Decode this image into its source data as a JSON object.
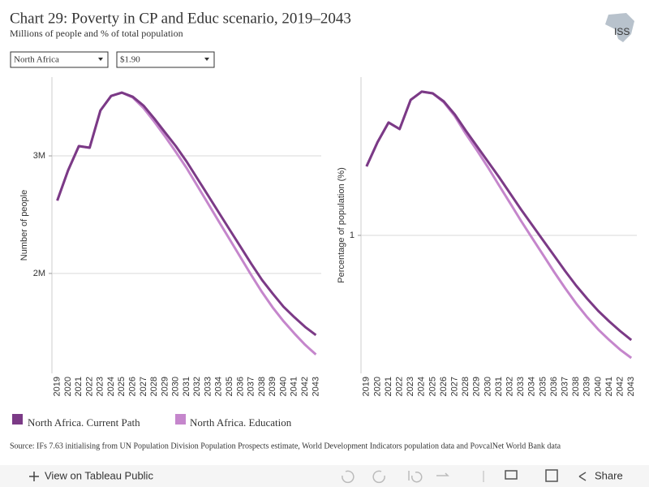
{
  "title": "Chart 29: Poverty in CP and Educ scenario, 2019–2043",
  "subtitle": "Millions of people and % of total population",
  "filters": [
    "North Africa",
    "$1.90"
  ],
  "source": "Source: IFs 7.63 initialising from UN Population Division Population Prospects estimate, World Development Indicators population data and PovcalNet World Bank data",
  "logo": "ISS",
  "toolbar": {
    "view": "View on Tableau Public",
    "share": "Share"
  },
  "chart_data": [
    {
      "type": "line",
      "y_label": "Number of people",
      "categories": [
        2019,
        2020,
        2021,
        2022,
        2023,
        2024,
        2025,
        2026,
        2027,
        2028,
        2029,
        2030,
        2031,
        2032,
        2033,
        2034,
        2035,
        2036,
        2037,
        2038,
        2039,
        2040,
        2041,
        2042,
        2043
      ],
      "ylim": [
        1150000,
        3670000
      ],
      "yticks": [
        {
          "value": 2000000,
          "label": "2M"
        },
        {
          "value": 3000000,
          "label": "3M"
        }
      ],
      "grid": true,
      "series": [
        {
          "name": "North Africa. Current Path",
          "color": "#7b3a86",
          "values": [
            2620000,
            2876000,
            3083000,
            3069000,
            3386000,
            3510000,
            3538000,
            3503000,
            3428000,
            3317000,
            3200000,
            3083000,
            2952000,
            2807000,
            2662000,
            2517000,
            2372000,
            2228000,
            2083000,
            1945000,
            1828000,
            1717000,
            1628000,
            1545000,
            1476000
          ]
        },
        {
          "name": "North Africa. Education",
          "color": "#c586cc",
          "values": [
            2620000,
            2876000,
            3083000,
            3069000,
            3386000,
            3510000,
            3538000,
            3497000,
            3407000,
            3290000,
            3166000,
            3034000,
            2897000,
            2745000,
            2593000,
            2441000,
            2290000,
            2138000,
            1986000,
            1841000,
            1710000,
            1593000,
            1490000,
            1393000,
            1310000
          ]
        }
      ]
    },
    {
      "type": "line",
      "y_label": "Percentage of population (%)",
      "categories": [
        2019,
        2020,
        2021,
        2022,
        2023,
        2024,
        2025,
        2026,
        2027,
        2028,
        2029,
        2030,
        2031,
        2032,
        2033,
        2034,
        2035,
        2036,
        2037,
        2038,
        2039,
        2040,
        2041,
        2042,
        2043
      ],
      "ylim": [
        0.346,
        1.75
      ],
      "yticks": [
        1
      ],
      "grid": true,
      "series": [
        {
          "name": "North Africa. Current Path",
          "color": "#7b3a86",
          "values": [
            1.327,
            1.442,
            1.535,
            1.504,
            1.642,
            1.681,
            1.673,
            1.635,
            1.573,
            1.496,
            1.423,
            1.35,
            1.277,
            1.2,
            1.123,
            1.05,
            0.977,
            0.904,
            0.831,
            0.762,
            0.7,
            0.642,
            0.592,
            0.546,
            0.504
          ]
        },
        {
          "name": "North Africa. Education",
          "color": "#c586cc",
          "values": [
            1.327,
            1.442,
            1.535,
            1.504,
            1.642,
            1.681,
            1.673,
            1.631,
            1.565,
            1.481,
            1.404,
            1.323,
            1.238,
            1.154,
            1.069,
            0.988,
            0.908,
            0.827,
            0.75,
            0.677,
            0.612,
            0.554,
            0.504,
            0.458,
            0.419
          ]
        }
      ]
    }
  ]
}
